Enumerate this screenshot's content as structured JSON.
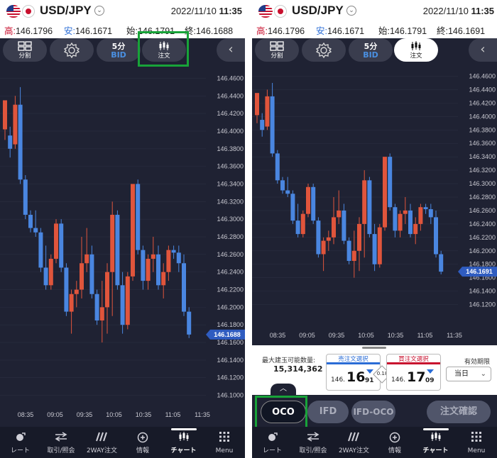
{
  "colors": {
    "bg": "#1f2233",
    "up": "#e0553c",
    "down": "#4a86e0",
    "highlight": "#18a339"
  },
  "left": {
    "pair": "USD/JPY",
    "date": "2022/11/10",
    "time": "11:35",
    "ohlc": [
      {
        "label": "高:",
        "value": "146.1796"
      },
      {
        "label": "安:",
        "value": "146.1671"
      },
      {
        "label": "始:",
        "value": "146.1791"
      },
      {
        "label": "終:",
        "value": "146.1688"
      }
    ],
    "toolbar": {
      "split_label": "分割",
      "timeframe_top": "5分",
      "timeframe_bottom": "BID",
      "order_label": "注文"
    },
    "price_tag": "146.1688",
    "y_ticks": [
      "146.4600",
      "146.4400",
      "146.4200",
      "146.4000",
      "146.3800",
      "146.3600",
      "146.3400",
      "146.3200",
      "146.3000",
      "146.2800",
      "146.2600",
      "146.2400",
      "146.2200",
      "146.2000",
      "146.1800",
      "146.1600",
      "146.1400",
      "146.1200",
      "146.1000"
    ],
    "x_ticks": [
      "08:35",
      "09:05",
      "09:35",
      "10:05",
      "10:35",
      "11:05",
      "11:35"
    ]
  },
  "right": {
    "pair": "USD/JPY",
    "date": "2022/11/10",
    "time": "11:35",
    "ohlc": [
      {
        "label": "高:",
        "value": "146.1796"
      },
      {
        "label": "安:",
        "value": "146.1671"
      },
      {
        "label": "始:",
        "value": "146.1791"
      },
      {
        "label": "終:",
        "value": "146.1691"
      }
    ],
    "toolbar": {
      "split_label": "分割",
      "timeframe_top": "5分",
      "timeframe_bottom": "BID",
      "order_label": "注文"
    },
    "price_tag": "146.1691",
    "y_ticks": [
      "146.4600",
      "146.4400",
      "146.4200",
      "146.4000",
      "146.3800",
      "146.3600",
      "146.3400",
      "146.3200",
      "146.3000",
      "146.2800",
      "146.2600",
      "146.2400",
      "146.2200",
      "146.2000",
      "146.1800",
      "146.1600",
      "146.1400",
      "146.1200"
    ],
    "x_ticks": [
      "08:35",
      "09:05",
      "09:35",
      "10:05",
      "10:35",
      "11:05",
      "11:35"
    ],
    "order_panel": {
      "max_qty_label": "最大建玉可能数量:",
      "max_qty_value": "15,314,362",
      "sell_header": "売注文選択",
      "buy_header": "買注文選択",
      "sell_price": {
        "prefix": "146.",
        "big": "16",
        "small": "91"
      },
      "buy_price": {
        "prefix": "146.",
        "big": "17",
        "small": "09"
      },
      "spread": "0.18",
      "expiry_label": "有効期限",
      "expiry_value": "当日",
      "oco_label": "OCO",
      "ifd_label": "IFD",
      "ifdoco_label": "IFD-OCO",
      "confirm_label": "注文確認"
    }
  },
  "nav": {
    "items": [
      {
        "label": "レート",
        "icon": "rate-icon"
      },
      {
        "label": "取引/照会",
        "icon": "trade-icon"
      },
      {
        "label": "2WAY注文",
        "icon": "2way-icon"
      },
      {
        "label": "情報",
        "icon": "info-icon"
      },
      {
        "label": "チャート",
        "icon": "chart-icon"
      },
      {
        "label": "Menu",
        "icon": "menu-grid-icon"
      }
    ]
  }
}
